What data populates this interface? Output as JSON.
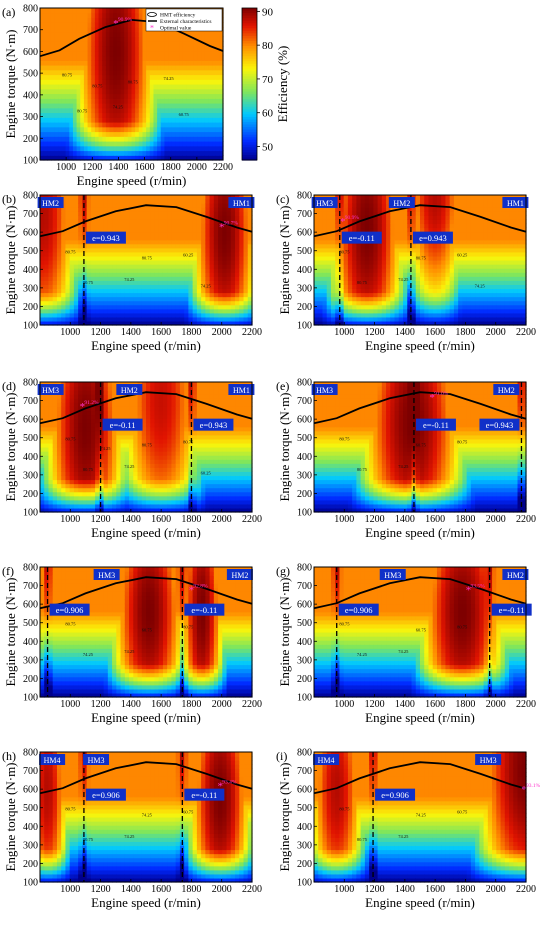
{
  "figure": {
    "colorbar": {
      "label": "Efficiency (%)",
      "ticks": [
        50,
        60,
        70,
        80,
        90
      ],
      "range": [
        46,
        91
      ]
    },
    "legend": {
      "items": [
        "HMT efficiency",
        "External characteristics",
        "Optimal value"
      ]
    }
  },
  "chart_data": [
    {
      "id": "a",
      "panel_label": "(a)",
      "type": "heatmap",
      "xlabel": "Engine speed (r/min)",
      "ylabel": "Engine torque (N·m)",
      "xlim": [
        800,
        2200
      ],
      "ylim": [
        100,
        800
      ],
      "xticks": [
        1000,
        1200,
        1400,
        1600,
        1800,
        2000,
        2200
      ],
      "yticks": [
        100,
        200,
        300,
        400,
        500,
        600,
        700,
        800
      ],
      "optimal": {
        "x": 1380,
        "y": 730,
        "label": "90.9%"
      },
      "boundaries": [],
      "regions": [],
      "peaks": [
        {
          "x": 1380,
          "y": 600,
          "sx": 330,
          "sy": 900,
          "v": 91
        }
      ],
      "contour_labels": [
        "80.75",
        "74.25",
        "74.25",
        "80.75",
        "80.75",
        "60.75",
        "80.75"
      ],
      "has_legend": true
    },
    {
      "id": "b",
      "panel_label": "(b)",
      "type": "heatmap",
      "xlabel": "Engine speed (r/min)",
      "ylabel": "Engine torque (N·m)",
      "xlim": [
        800,
        2200
      ],
      "ylim": [
        100,
        800
      ],
      "xticks": [
        1000,
        1200,
        1400,
        1600,
        1800,
        2000,
        2200
      ],
      "yticks": [
        100,
        200,
        300,
        400,
        500,
        600,
        700,
        800
      ],
      "optimal": {
        "x": 2000,
        "y": 630,
        "label": "90.7%"
      },
      "boundaries": [
        {
          "x": 1090,
          "e_label": "e=0.943",
          "label_y": 565,
          "label_side": "right"
        }
      ],
      "regions": [
        {
          "x": 870,
          "label": "HM2"
        },
        {
          "x": 2130,
          "label": "HM1"
        }
      ],
      "peaks": [
        {
          "x": 2020,
          "y": 600,
          "sx": 230,
          "sy": 850,
          "v": 91
        },
        {
          "x": 820,
          "y": 700,
          "sx": 250,
          "sy": 900,
          "v": 88
        }
      ],
      "contour_labels": [
        "80.75",
        "74.25",
        "60.25",
        "80.75",
        "80.75",
        "74.25"
      ]
    },
    {
      "id": "c",
      "panel_label": "(c)",
      "type": "heatmap",
      "xlabel": "Engine speed (r/min)",
      "ylabel": "Engine torque (N·m)",
      "xlim": [
        800,
        2200
      ],
      "ylim": [
        100,
        800
      ],
      "xticks": [
        1000,
        1200,
        1400,
        1600,
        1800,
        2000,
        2200
      ],
      "yticks": [
        100,
        200,
        300,
        400,
        500,
        600,
        700,
        800
      ],
      "optimal": {
        "x": 990,
        "y": 660,
        "label": "90.9%"
      },
      "boundaries": [
        {
          "x": 970,
          "e_label": "e=-0.11",
          "label_y": 565,
          "label_side": "right"
        },
        {
          "x": 1440,
          "e_label": "e=0.943",
          "label_y": 565,
          "label_side": "right"
        }
      ],
      "regions": [
        {
          "x": 870,
          "label": "HM3"
        },
        {
          "x": 1380,
          "label": "HM2"
        },
        {
          "x": 2130,
          "label": "HM1"
        }
      ],
      "peaks": [
        {
          "x": 1150,
          "y": 620,
          "sx": 260,
          "sy": 900,
          "v": 91
        },
        {
          "x": 1600,
          "y": 800,
          "sx": 220,
          "sy": 700,
          "v": 88
        }
      ],
      "contour_labels": [
        "80.75",
        "74.25",
        "60.25",
        "80.75",
        "80.75",
        "74.25"
      ]
    },
    {
      "id": "d",
      "panel_label": "(d)",
      "type": "heatmap",
      "xlabel": "Engine speed (r/min)",
      "ylabel": "Engine torque (N·m)",
      "xlim": [
        800,
        2200
      ],
      "ylim": [
        100,
        800
      ],
      "xticks": [
        1000,
        1200,
        1400,
        1600,
        1800,
        2000,
        2200
      ],
      "yticks": [
        100,
        200,
        300,
        400,
        500,
        600,
        700,
        800
      ],
      "optimal": {
        "x": 1080,
        "y": 670,
        "label": "91.2%"
      },
      "boundaries": [
        {
          "x": 1200,
          "e_label": "e=-0.11",
          "label_y": 565,
          "label_side": "right"
        },
        {
          "x": 1800,
          "e_label": "e=0.943",
          "label_y": 565,
          "label_side": "right"
        }
      ],
      "regions": [
        {
          "x": 870,
          "label": "HM3"
        },
        {
          "x": 1390,
          "label": "HM2"
        },
        {
          "x": 2130,
          "label": "HM1"
        }
      ],
      "peaks": [
        {
          "x": 1100,
          "y": 560,
          "sx": 280,
          "sy": 950,
          "v": 91
        },
        {
          "x": 1600,
          "y": 700,
          "sx": 300,
          "sy": 900,
          "v": 87
        }
      ],
      "contour_labels": [
        "80.75",
        "74.25",
        "80.75",
        "80.75",
        "80.75",
        "60.25",
        "74.25"
      ]
    },
    {
      "id": "e",
      "panel_label": "(e)",
      "type": "heatmap",
      "xlabel": "Engine speed (r/min)",
      "ylabel": "Engine torque (N·m)",
      "xlim": [
        800,
        2200
      ],
      "ylim": [
        100,
        800
      ],
      "xticks": [
        1000,
        1200,
        1400,
        1600,
        1800,
        2000,
        2200
      ],
      "yticks": [
        100,
        200,
        300,
        400,
        500,
        600,
        700,
        800
      ],
      "optimal": {
        "x": 1580,
        "y": 720,
        "label": "91.0%"
      },
      "boundaries": [
        {
          "x": 1460,
          "e_label": "e=-0.11",
          "label_y": 565,
          "label_side": "right"
        },
        {
          "x": 2170,
          "e_label": "e=0.943",
          "label_y": 565,
          "label_side": "left"
        }
      ],
      "regions": [
        {
          "x": 870,
          "label": "HM3"
        },
        {
          "x": 2070,
          "label": "HM2"
        }
      ],
      "peaks": [
        {
          "x": 1450,
          "y": 580,
          "sx": 360,
          "sy": 900,
          "v": 91
        }
      ],
      "contour_labels": [
        "80.75",
        "74.25",
        "80.75",
        "80.75",
        "60.75"
      ]
    },
    {
      "id": "f",
      "panel_label": "(f)",
      "type": "heatmap",
      "xlabel": "Engine speed (r/min)",
      "ylabel": "Engine torque (N·m)",
      "xlim": [
        800,
        2200
      ],
      "ylim": [
        100,
        800
      ],
      "xticks": [
        1000,
        1200,
        1400,
        1600,
        1800,
        2000,
        2200
      ],
      "yticks": [
        100,
        200,
        300,
        400,
        500,
        600,
        700,
        800
      ],
      "optimal": {
        "x": 1800,
        "y": 680,
        "label": "92.8%"
      },
      "boundaries": [
        {
          "x": 850,
          "e_label": "e=0.906",
          "label_y": 565,
          "label_side": "right"
        },
        {
          "x": 1740,
          "e_label": "e=-0.11",
          "label_y": 565,
          "label_side": "right"
        }
      ],
      "regions": [
        {
          "x": 1240,
          "label": "HM3"
        },
        {
          "x": 2120,
          "label": "HM2"
        }
      ],
      "peaks": [
        {
          "x": 1520,
          "y": 560,
          "sx": 260,
          "sy": 800,
          "v": 91
        },
        {
          "x": 1870,
          "y": 560,
          "sx": 150,
          "sy": 800,
          "v": 91
        }
      ],
      "contour_labels": [
        "80.75",
        "74.25",
        "80.75",
        "74.25",
        "60.75"
      ]
    },
    {
      "id": "g",
      "panel_label": "(g)",
      "type": "heatmap",
      "xlabel": "Engine speed (r/min)",
      "ylabel": "Engine torque (N·m)",
      "xlim": [
        800,
        2200
      ],
      "ylim": [
        100,
        800
      ],
      "xticks": [
        1000,
        1200,
        1400,
        1600,
        1800,
        2000,
        2200
      ],
      "yticks": [
        100,
        200,
        300,
        400,
        500,
        600,
        700,
        800
      ],
      "optimal": {
        "x": 1820,
        "y": 680,
        "label": "93.5%"
      },
      "boundaries": [
        {
          "x": 950,
          "e_label": "e=0.906",
          "label_y": 565,
          "label_side": "right"
        },
        {
          "x": 1960,
          "e_label": "e=-0.11",
          "label_y": 565,
          "label_side": "right"
        }
      ],
      "regions": [
        {
          "x": 1320,
          "label": "HM3"
        },
        {
          "x": 2130,
          "label": "HM2"
        }
      ],
      "peaks": [
        {
          "x": 1780,
          "y": 560,
          "sx": 300,
          "sy": 800,
          "v": 91
        }
      ],
      "contour_labels": [
        "80.75",
        "74.25",
        "80.75",
        "74.25",
        "60.75"
      ]
    },
    {
      "id": "h",
      "panel_label": "(h)",
      "type": "heatmap",
      "xlabel": "Engine speed (r/min)",
      "ylabel": "Engine torque (N·m)",
      "xlim": [
        800,
        2200
      ],
      "ylim": [
        100,
        800
      ],
      "xticks": [
        1000,
        1200,
        1400,
        1600,
        1800,
        2000,
        2200
      ],
      "yticks": [
        100,
        200,
        300,
        400,
        500,
        600,
        700,
        800
      ],
      "optimal": {
        "x": 1990,
        "y": 620,
        "label": "93.4%"
      },
      "boundaries": [
        {
          "x": 1090,
          "e_label": "e=0.906",
          "label_y": 565,
          "label_side": "right"
        },
        {
          "x": 1740,
          "e_label": "e=-0.11",
          "label_y": 565,
          "label_side": "right"
        }
      ],
      "regions": [
        {
          "x": 880,
          "label": "HM4"
        },
        {
          "x": 1170,
          "label": "HM3"
        }
      ],
      "peaks": [
        {
          "x": 1990,
          "y": 560,
          "sx": 220,
          "sy": 800,
          "v": 91
        },
        {
          "x": 850,
          "y": 600,
          "sx": 150,
          "sy": 800,
          "v": 88
        }
      ],
      "contour_labels": [
        "80.75",
        "74.25",
        "60.75",
        "80.75",
        "74.25"
      ]
    },
    {
      "id": "i",
      "panel_label": "(i)",
      "type": "heatmap",
      "xlabel": "Engine speed (r/min)",
      "ylabel": "Engine torque (N·m)",
      "xlim": [
        800,
        2200
      ],
      "ylim": [
        100,
        800
      ],
      "xticks": [
        1000,
        1200,
        1400,
        1600,
        1800,
        2000,
        2200
      ],
      "yticks": [
        100,
        200,
        300,
        400,
        500,
        600,
        700,
        800
      ],
      "optimal": {
        "x": 2190,
        "y": 600,
        "label": "93.1%"
      },
      "boundaries": [
        {
          "x": 1190,
          "e_label": "e=0.906",
          "label_y": 565,
          "label_side": "right"
        }
      ],
      "regions": [
        {
          "x": 880,
          "label": "HM4"
        },
        {
          "x": 1950,
          "label": "HM3"
        }
      ],
      "peaks": [
        {
          "x": 2200,
          "y": 700,
          "sx": 350,
          "sy": 900,
          "v": 91
        },
        {
          "x": 950,
          "y": 600,
          "sx": 200,
          "sy": 800,
          "v": 88
        }
      ],
      "contour_labels": [
        "80.75",
        "74.25",
        "60.75",
        "80.75",
        "74.25"
      ]
    }
  ],
  "external_characteristic": {
    "speed": [
      800,
      950,
      1100,
      1300,
      1500,
      1700,
      1900,
      2100,
      2200
    ],
    "torque": [
      578,
      605,
      658,
      712,
      745,
      735,
      682,
      625,
      602
    ]
  }
}
